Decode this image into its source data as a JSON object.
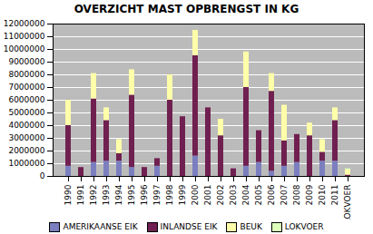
{
  "chart_data": {
    "type": "bar",
    "title": "OVERZICHT MAST OPBRENGST IN KG",
    "categories": [
      "1990",
      "1991",
      "1992",
      "1993",
      "1994",
      "1995",
      "1996",
      "1997",
      "1998",
      "1999",
      "2000",
      "2001",
      "2002",
      "2003",
      "2004",
      "2005",
      "2006",
      "2007",
      "2008",
      "2009",
      "2010",
      "2011",
      "LOKVOER"
    ],
    "series": [
      {
        "name": "AMERIKAANSE EIK",
        "color": "#7B7FBF",
        "values": [
          800000,
          0,
          1100000,
          1200000,
          1200000,
          700000,
          0,
          800000,
          0,
          0,
          1600000,
          0,
          0,
          0,
          800000,
          1100000,
          400000,
          800000,
          1100000,
          0,
          1200000,
          1200000,
          0
        ]
      },
      {
        "name": "INLANDSE EIK",
        "color": "#702050",
        "values": [
          3200000,
          700000,
          5000000,
          3200000,
          600000,
          5700000,
          700000,
          600000,
          6000000,
          4700000,
          7900000,
          5400000,
          3200000,
          600000,
          6200000,
          2500000,
          6300000,
          2000000,
          2200000,
          3200000,
          700000,
          3200000,
          100000
        ]
      },
      {
        "name": "BEUK",
        "color": "#FFFFAA",
        "values": [
          2000000,
          0,
          2000000,
          1000000,
          1100000,
          2000000,
          0,
          0,
          2000000,
          0,
          2000000,
          0,
          1300000,
          0,
          2800000,
          0,
          1400000,
          2800000,
          0,
          1000000,
          1000000,
          1000000,
          400000
        ]
      },
      {
        "name": "LOKVOER",
        "color": "#DDFFBB",
        "values": [
          0,
          0,
          0,
          0,
          0,
          0,
          0,
          0,
          0,
          0,
          0,
          0,
          0,
          0,
          0,
          0,
          0,
          0,
          0,
          0,
          0,
          0,
          100000
        ]
      }
    ],
    "stacked": true,
    "ylim": [
      0,
      12000000
    ],
    "yticks": [
      0,
      1000000,
      2000000,
      3000000,
      4000000,
      5000000,
      6000000,
      7000000,
      8000000,
      9000000,
      10000000,
      11000000,
      12000000
    ],
    "grid": true,
    "legend": "bottom"
  }
}
